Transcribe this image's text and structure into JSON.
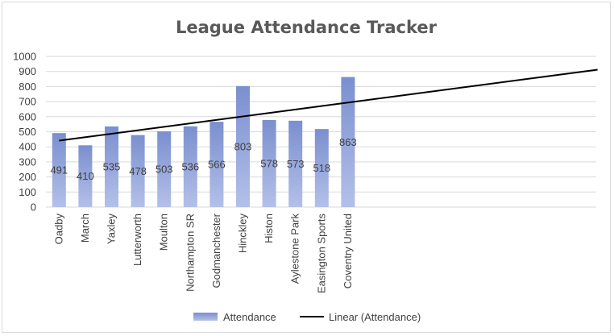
{
  "chart_data": {
    "type": "bar",
    "title": "League Attendance Tracker",
    "categories": [
      "Oadby",
      "March",
      "Yaxley",
      "Lutterworth",
      "Moulton",
      "Northampton SR",
      "Godmanchester",
      "Hinckley",
      "Histon",
      "Aylestone Park",
      "Easington Sports",
      "Coventry United"
    ],
    "series": [
      {
        "name": "Attendance",
        "values": [
          491,
          410,
          535,
          478,
          503,
          536,
          566,
          803,
          578,
          573,
          518,
          863
        ]
      }
    ],
    "trendline": {
      "name": "Linear (Attendance)",
      "type": "linear",
      "start_value": 441,
      "end_value": 912,
      "extends_to_category_index": 20.5
    },
    "ylim": [
      0,
      1000
    ],
    "yticks": [
      "0",
      "100",
      "200",
      "300",
      "400",
      "500",
      "600",
      "700",
      "800",
      "900",
      "1000"
    ],
    "grid": true,
    "legend": "bottom",
    "data_labels": true,
    "xlabel": "",
    "ylabel": ""
  },
  "colors": {
    "bar_fill_top": "#7a8fcf",
    "bar_fill_bottom": "#b3c0e8",
    "gridline": "#d9d9d9",
    "trendline": "#000000"
  }
}
